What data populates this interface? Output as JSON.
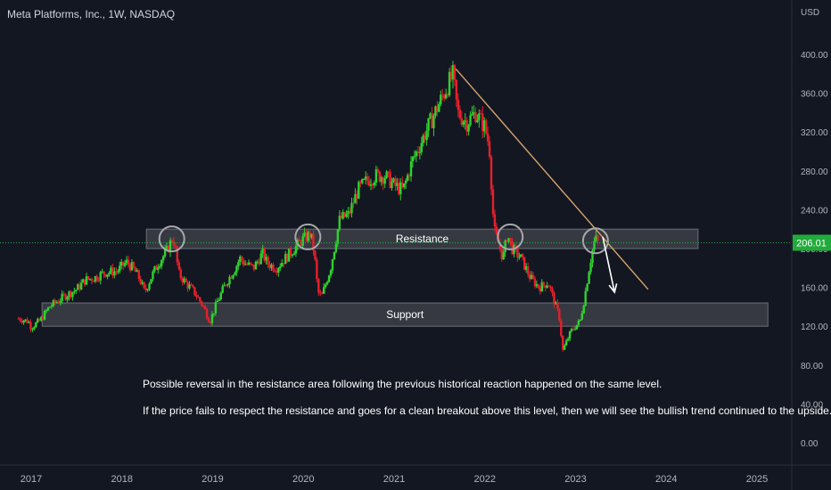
{
  "symbol_title": "Meta Platforms, Inc., 1W, NASDAQ",
  "currency_label": "USD",
  "current_price_label": "206.01",
  "annotations": {
    "line1": "Possible reversal in the resistance area following the previous historical reaction happened on the same level.",
    "line2": "If the price fails to respect the resistance and goes for a clean breakout above this level, then we will see the bullish trend continued to the upside."
  },
  "zones": {
    "resistance": {
      "label": "Resistance",
      "low": 200,
      "high": 220,
      "from": 2018.27,
      "to": 2024.35
    },
    "support": {
      "label": "Support",
      "low": 120,
      "high": 144,
      "from": 2017.12,
      "to": 2025.12
    }
  },
  "colors": {
    "background": "#131722",
    "up": "#2fd22f",
    "down": "#e5202a",
    "zone_fill": "#3d4048",
    "trendline": "#d9a36b",
    "price_marker": "#22ab3b"
  },
  "chart_data": {
    "type": "candlestick",
    "title": "Meta Platforms, Inc., 1W, NASDAQ",
    "ylabel": "USD",
    "ylim": [
      0,
      420
    ],
    "xlim": [
      2016.98,
      2025.4
    ],
    "y_ticks": [
      0,
      40,
      80,
      120,
      160,
      200,
      240,
      280,
      320,
      360,
      400
    ],
    "y_tick_labels": [
      "0.00",
      "40.00",
      "80.00",
      "120.00",
      "160.00",
      "200.00",
      "240.00",
      "280.00",
      "320.00",
      "360.00",
      "400.00"
    ],
    "x_ticks": [
      2017,
      2018,
      2019,
      2020,
      2021,
      2022,
      2023,
      2024,
      2025
    ],
    "x_tick_labels": [
      "2017",
      "2018",
      "2019",
      "2020",
      "2021",
      "2022",
      "2023",
      "2024",
      "2025"
    ],
    "current_price": 206.01,
    "price_path": [
      [
        2016.86,
        128
      ],
      [
        2016.97,
        125
      ],
      [
        2017.0,
        119
      ],
      [
        2017.1,
        126
      ],
      [
        2017.2,
        140
      ],
      [
        2017.35,
        150
      ],
      [
        2017.5,
        158
      ],
      [
        2017.6,
        168
      ],
      [
        2017.7,
        170
      ],
      [
        2017.8,
        175
      ],
      [
        2017.95,
        177
      ],
      [
        2018.05,
        186
      ],
      [
        2018.12,
        180
      ],
      [
        2018.2,
        168
      ],
      [
        2018.25,
        155
      ],
      [
        2018.32,
        170
      ],
      [
        2018.4,
        185
      ],
      [
        2018.5,
        198
      ],
      [
        2018.56,
        212
      ],
      [
        2018.6,
        195
      ],
      [
        2018.62,
        175
      ],
      [
        2018.7,
        165
      ],
      [
        2018.8,
        155
      ],
      [
        2018.9,
        140
      ],
      [
        2018.97,
        125
      ],
      [
        2019.05,
        145
      ],
      [
        2019.15,
        165
      ],
      [
        2019.25,
        180
      ],
      [
        2019.3,
        190
      ],
      [
        2019.35,
        185
      ],
      [
        2019.45,
        180
      ],
      [
        2019.55,
        195
      ],
      [
        2019.6,
        185
      ],
      [
        2019.7,
        180
      ],
      [
        2019.8,
        190
      ],
      [
        2019.9,
        200
      ],
      [
        2020.0,
        210
      ],
      [
        2020.08,
        215
      ],
      [
        2020.12,
        195
      ],
      [
        2020.16,
        155
      ],
      [
        2020.2,
        150
      ],
      [
        2020.3,
        180
      ],
      [
        2020.4,
        230
      ],
      [
        2020.5,
        235
      ],
      [
        2020.6,
        260
      ],
      [
        2020.7,
        270
      ],
      [
        2020.8,
        275
      ],
      [
        2020.9,
        275
      ],
      [
        2021.0,
        265
      ],
      [
        2021.1,
        260
      ],
      [
        2021.2,
        290
      ],
      [
        2021.3,
        310
      ],
      [
        2021.4,
        330
      ],
      [
        2021.5,
        350
      ],
      [
        2021.6,
        370
      ],
      [
        2021.65,
        378
      ],
      [
        2021.7,
        340
      ],
      [
        2021.8,
        330
      ],
      [
        2021.9,
        340
      ],
      [
        2022.0,
        325
      ],
      [
        2022.05,
        305
      ],
      [
        2022.1,
        220
      ],
      [
        2022.15,
        205
      ],
      [
        2022.2,
        190
      ],
      [
        2022.25,
        215
      ],
      [
        2022.3,
        200
      ],
      [
        2022.4,
        190
      ],
      [
        2022.5,
        170
      ],
      [
        2022.6,
        160
      ],
      [
        2022.7,
        165
      ],
      [
        2022.75,
        150
      ],
      [
        2022.82,
        130
      ],
      [
        2022.86,
        95
      ],
      [
        2022.95,
        115
      ],
      [
        2023.05,
        125
      ],
      [
        2023.1,
        150
      ],
      [
        2023.15,
        180
      ],
      [
        2023.2,
        205
      ],
      [
        2023.22,
        210
      ],
      [
        2023.25,
        206
      ]
    ],
    "trendline": {
      "points": [
        [
          2021.68,
          385
        ],
        [
          2023.8,
          158
        ]
      ]
    },
    "projection_arrow": {
      "from": [
        2023.3,
        212
      ],
      "to": [
        2023.43,
        155
      ]
    },
    "reaction_points": [
      [
        2018.55,
        210
      ],
      [
        2020.05,
        212
      ],
      [
        2022.28,
        212
      ],
      [
        2023.22,
        208
      ]
    ]
  }
}
